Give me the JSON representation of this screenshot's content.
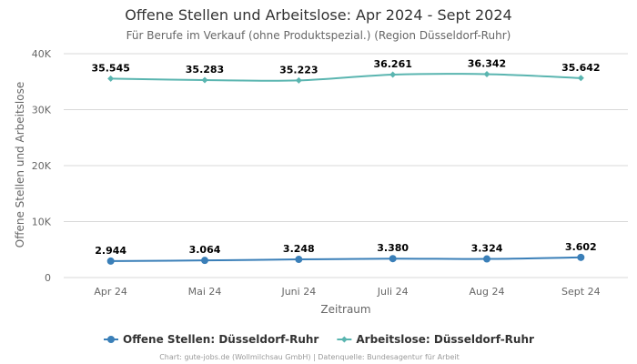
{
  "chart_data": {
    "type": "line",
    "title": "Offene Stellen und Arbeitslose: Apr 2024 - Sept 2024",
    "subtitle": "Für Berufe im Verkauf (ohne Produktspezial.) (Region Düsseldorf-Ruhr)",
    "xlabel": "Zeitraum",
    "ylabel": "Offene Stellen und Arbeitslose",
    "categories": [
      "Apr 24",
      "Mai 24",
      "Juni 24",
      "Juli 24",
      "Aug 24",
      "Sept 24"
    ],
    "ylim": [
      0,
      40000
    ],
    "yticks": [
      0,
      10000,
      20000,
      30000,
      40000
    ],
    "ytick_labels": [
      "0",
      "10K",
      "20K",
      "30K",
      "40K"
    ],
    "grid": true,
    "legend_position": "bottom-center",
    "series": [
      {
        "name": "Offene Stellen: Düsseldorf-Ruhr",
        "values": [
          2944,
          3064,
          3248,
          3380,
          3324,
          3602
        ],
        "labels": [
          "2.944",
          "3.064",
          "3.248",
          "3.380",
          "3.324",
          "3.602"
        ],
        "color": "#3a7fb8",
        "marker": "circle"
      },
      {
        "name": "Arbeitslose: Düsseldorf-Ruhr",
        "values": [
          35545,
          35283,
          35223,
          36261,
          36342,
          35642
        ],
        "labels": [
          "35.545",
          "35.283",
          "35.223",
          "36.261",
          "36.342",
          "35.642"
        ],
        "color": "#5ab5b0",
        "marker": "diamond"
      }
    ]
  },
  "credits": "Chart: gute-jobs.de (Wollmilchsau GmbH) | Datenquelle: Bundesagentur für Arbeit"
}
